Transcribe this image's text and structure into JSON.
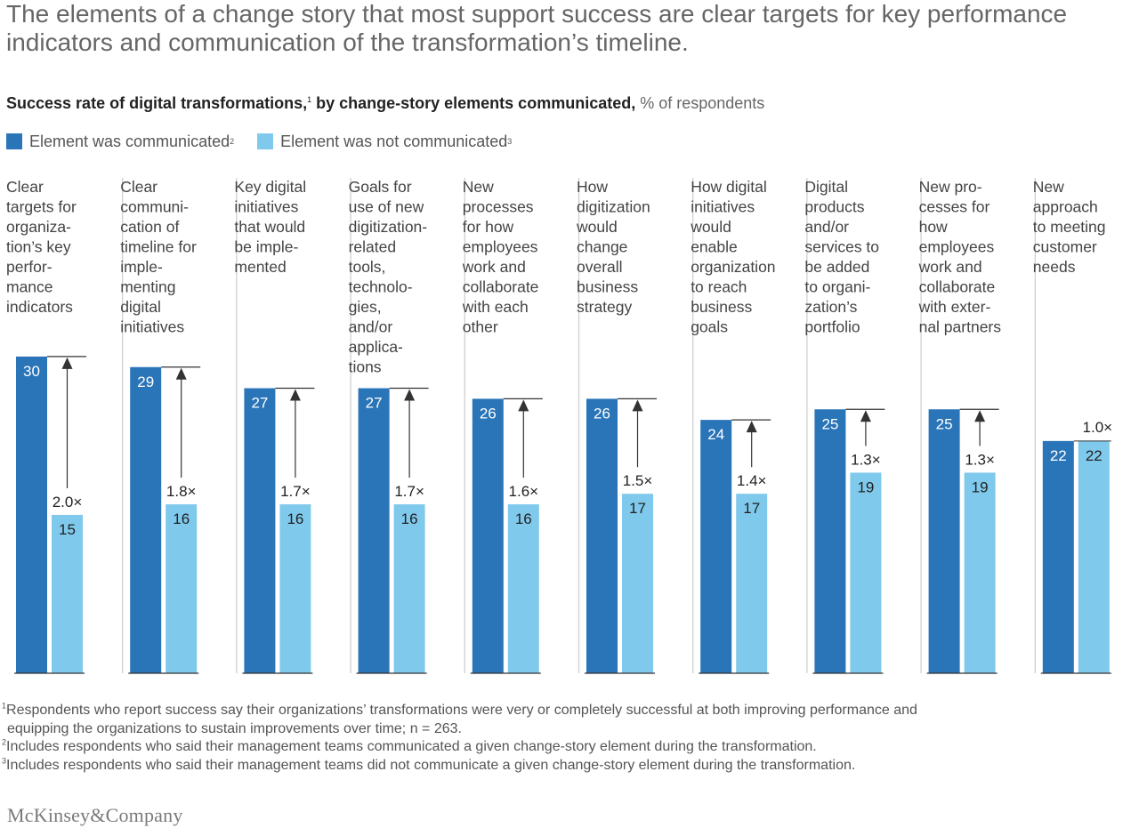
{
  "headline": "The elements of a change story that most support success are clear targets for key performance indicators and communication of the transformation’s timeline.",
  "subtitle": {
    "bold": "Success rate of digital transformations,",
    "sup1": "1",
    "bold2": " by change-story elements communicated,",
    "unit": " % of respondents"
  },
  "legend": [
    {
      "label": "Element was communicated",
      "sup": "2",
      "color": "#2a74b8"
    },
    {
      "label": "Element was not communicated",
      "sup": "3",
      "color": "#7fc9ec"
    }
  ],
  "colors": {
    "communicated": "#2a74b8",
    "not_communicated": "#7fc9ec",
    "divider": "#cccccc",
    "baseline": "#333333"
  },
  "chart_data": {
    "type": "bar",
    "title": "Success rate of digital transformations, by change-story elements communicated, % of respondents",
    "ylim": [
      0,
      30
    ],
    "series": [
      {
        "name": "Element was communicated",
        "values": [
          30,
          29,
          27,
          27,
          26,
          26,
          24,
          25,
          25,
          22
        ]
      },
      {
        "name": "Element was not communicated",
        "values": [
          15,
          16,
          16,
          16,
          16,
          17,
          17,
          19,
          19,
          22
        ]
      }
    ],
    "ratios": [
      "2.0×",
      "1.8×",
      "1.7×",
      "1.7×",
      "1.6×",
      "1.5×",
      "1.4×",
      "1.3×",
      "1.3×",
      "1.0×"
    ],
    "categories": [
      [
        "Clear",
        "targets for",
        "organiza-",
        "tion’s key",
        "perfor-",
        "mance",
        "indicators"
      ],
      [
        "Clear",
        "communi-",
        "cation of",
        "timeline for",
        "imple-",
        "menting",
        "digital",
        "initiatives"
      ],
      [
        "Key digital",
        "initiatives",
        "that would",
        "be imple-",
        "mented"
      ],
      [
        "Goals for",
        "use of new",
        "digitization-",
        "related",
        "tools,",
        "technolo-",
        "gies,",
        "and/or",
        "applica-",
        "tions"
      ],
      [
        "New",
        "processes",
        "for how",
        "employees",
        "work and",
        "collaborate",
        "with each",
        "other"
      ],
      [
        "How",
        "digitization",
        "would",
        "change",
        "overall",
        "business",
        "strategy"
      ],
      [
        "How digital",
        "initiatives",
        "would",
        "enable",
        "organization",
        "to reach",
        "business",
        "goals"
      ],
      [
        "Digital",
        "products",
        "and/or",
        "services to",
        "be added",
        "to organi-",
        "zation’s",
        "portfolio"
      ],
      [
        "New pro-",
        "cesses for",
        "how",
        "employees",
        "work and",
        "collaborate",
        "with exter-",
        "nal partners"
      ],
      [
        "New",
        "approach",
        "to meeting",
        "customer",
        "needs"
      ]
    ]
  },
  "footnotes": [
    {
      "sup": "1",
      "text": "Respondents who report success say their organizations’ transformations were very or completely successful at both improving performance and",
      "cont": "equipping the organizations to sustain improvements over time; n = 263."
    },
    {
      "sup": "2",
      "text": "Includes respondents who said their management teams communicated a given change-story element during the transformation."
    },
    {
      "sup": "3",
      "text": "Includes respondents who said their management teams did not communicate a given change-story element during the transformation."
    }
  ],
  "logo": "McKinsey&Company"
}
